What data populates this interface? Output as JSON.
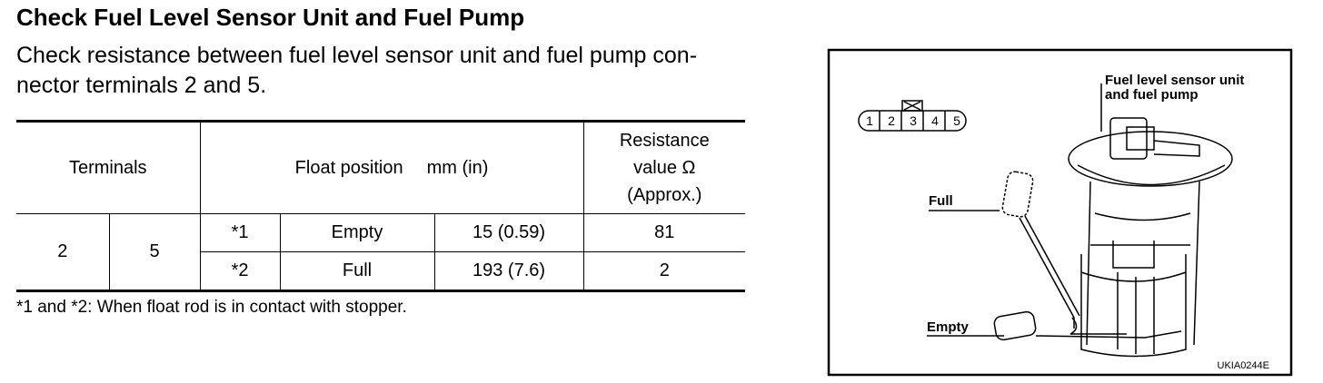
{
  "title": "Check Fuel Level Sensor Unit and Fuel Pump",
  "instruction_lines": [
    "Check resistance between fuel level sensor unit and fuel pump con-",
    "nector terminals 2 and 5."
  ],
  "table": {
    "header": {
      "terminals": "Terminals",
      "float_position": "Float position",
      "float_unit": "mm (in)",
      "resistance_lines": [
        "Resistance",
        "value Ω",
        "(Approx.)"
      ]
    },
    "rows": [
      [
        "2",
        "5",
        "*1",
        "Empty",
        "15 (0.59)",
        "81"
      ],
      [
        "*2",
        "Full",
        "193 (7.6)",
        "2"
      ]
    ]
  },
  "footnote": "*1 and *2: When float rod is in contact with stopper.",
  "figure": {
    "callout_lines": [
      "Fuel level sensor unit",
      "and fuel pump"
    ],
    "full_label": "Full",
    "empty_label": "Empty",
    "connector_pins": [
      "1",
      "2",
      "3",
      "4",
      "5"
    ],
    "code": "UKIA0244E"
  }
}
